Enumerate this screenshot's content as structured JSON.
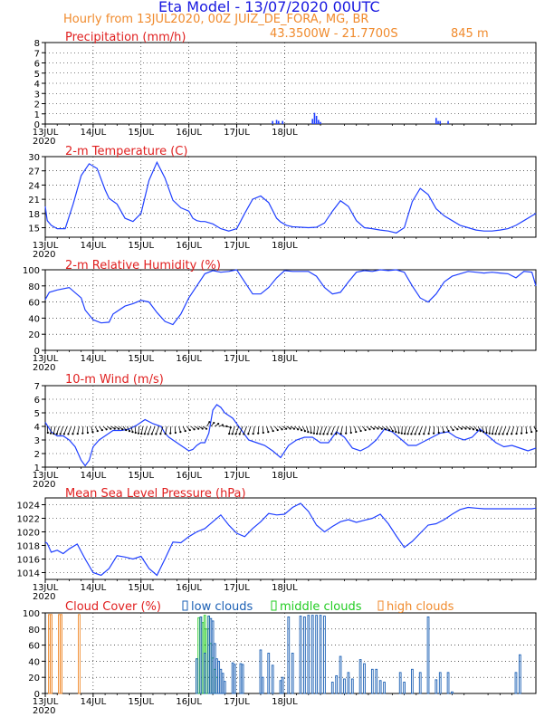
{
  "header": {
    "title": "Eta Model - 13/07/2020 00UTC",
    "subtitle": "Hourly from 13JUL2020, 00Z  JUIZ_DE_FORA, MG, BR",
    "coords": "43.3500W - 21.7700S",
    "elevation": "845  m"
  },
  "colors": {
    "title": "#1818e0",
    "label": "#e02020",
    "orange": "#f08a2c",
    "line": "#2040ff",
    "low": "#1a5fb4",
    "mid": "#22cc22",
    "high": "#f08a2c",
    "grid": "#000000",
    "arrow": "#000000"
  },
  "chart_data": [
    {
      "name": "precip",
      "type": "bar",
      "title": "Precipitation (mm/h)",
      "ylim": [
        0,
        8
      ],
      "yticks": [
        0,
        1,
        2,
        3,
        4,
        5,
        6,
        7,
        8
      ],
      "hours": [
        114,
        116,
        117,
        119,
        134,
        135,
        136,
        137,
        138,
        196,
        197,
        198,
        202
      ],
      "values": [
        0.3,
        0.4,
        0.3,
        0.3,
        0.5,
        1.1,
        0.8,
        0.4,
        0.2,
        0.6,
        0.3,
        0.3,
        0.3
      ]
    },
    {
      "name": "temp",
      "type": "line",
      "title": "2-m Temperature (C)",
      "ylim": [
        13,
        30
      ],
      "yticks": [
        15,
        18,
        21,
        24,
        27,
        30
      ],
      "hours": [
        0,
        1,
        3,
        6,
        10,
        14,
        18,
        22,
        26,
        30,
        32,
        36,
        40,
        44,
        48,
        52,
        56,
        60,
        64,
        68,
        72,
        74,
        76,
        78,
        80,
        84,
        88,
        92,
        96,
        100,
        104,
        108,
        112,
        116,
        118,
        121,
        124,
        128,
        132,
        136,
        140,
        144,
        148,
        152,
        156,
        160,
        164,
        168,
        172,
        176,
        180,
        184,
        188,
        192,
        196,
        200,
        204,
        208,
        212,
        216,
        220,
        224,
        228,
        232,
        236,
        240,
        244,
        246
      ],
      "values": [
        19.5,
        16.5,
        15.5,
        14.8,
        14.8,
        20,
        26,
        28.5,
        27.5,
        23,
        21.2,
        20,
        17,
        16.3,
        18,
        25,
        28.8,
        25.5,
        20.8,
        19.2,
        18.5,
        17,
        16.5,
        16.3,
        16.3,
        15.8,
        14.8,
        14.3,
        14.8,
        18,
        21,
        21.7,
        20.3,
        17,
        16.2,
        15.5,
        15.2,
        15.1,
        15,
        15.1,
        16,
        18.5,
        20.7,
        19.5,
        16.5,
        15,
        14.8,
        14.5,
        14.3,
        13.9,
        15,
        20.5,
        23.3,
        22,
        19,
        17.5,
        16.5,
        15.5,
        15,
        14.5,
        14.3,
        14.3,
        14.5,
        14.8,
        15.5,
        16.5,
        17.5,
        18
      ]
    },
    {
      "name": "rh",
      "type": "line",
      "title": "2-m Relative Humidity (%)",
      "ylim": [
        0,
        100
      ],
      "yticks": [
        0,
        20,
        40,
        60,
        80,
        100
      ],
      "hours": [
        0,
        2,
        6,
        12,
        18,
        20,
        24,
        28,
        32,
        34,
        40,
        44,
        48,
        52,
        56,
        60,
        64,
        68,
        72,
        76,
        80,
        84,
        88,
        92,
        96,
        100,
        104,
        108,
        112,
        116,
        120,
        124,
        128,
        132,
        136,
        140,
        144,
        148,
        152,
        156,
        160,
        164,
        168,
        172,
        176,
        180,
        184,
        188,
        192,
        196,
        200,
        204,
        208,
        212,
        216,
        220,
        224,
        228,
        232,
        236,
        240,
        244,
        246
      ],
      "values": [
        63,
        72,
        75,
        78,
        65,
        50,
        38,
        34,
        35,
        45,
        55,
        58,
        62,
        60,
        47,
        36,
        32,
        45,
        65,
        80,
        95,
        99,
        97,
        98,
        100,
        85,
        70,
        70,
        78,
        90,
        99,
        98,
        98,
        98,
        92,
        78,
        70,
        72,
        85,
        97,
        99,
        98,
        100,
        99,
        100,
        97,
        80,
        65,
        60,
        70,
        85,
        92,
        95,
        98,
        97,
        96,
        97,
        96,
        95,
        90,
        98,
        97,
        80
      ]
    },
    {
      "name": "wind",
      "type": "line",
      "title": "10-m Wind (m/s)",
      "ylim": [
        1,
        7
      ],
      "yticks": [
        1,
        2,
        3,
        4,
        5,
        6,
        7
      ],
      "hours": [
        0,
        3,
        6,
        9,
        12,
        15,
        18,
        20,
        22,
        24,
        27,
        30,
        34,
        38,
        42,
        46,
        50,
        54,
        58,
        60,
        62,
        64,
        66,
        68,
        70,
        72,
        74,
        76,
        78,
        80,
        82,
        84,
        86,
        88,
        90,
        94,
        98,
        102,
        106,
        110,
        114,
        118,
        122,
        126,
        130,
        134,
        138,
        142,
        146,
        150,
        154,
        158,
        162,
        166,
        170,
        174,
        178,
        182,
        186,
        190,
        194,
        198,
        202,
        206,
        210,
        214,
        218,
        222,
        226,
        230,
        234,
        238,
        242,
        246
      ],
      "values": [
        4.3,
        3.6,
        3.3,
        3.3,
        3,
        2.5,
        1.5,
        1.1,
        1.5,
        2.5,
        3,
        3.3,
        3.7,
        3.7,
        3.8,
        4.1,
        4.5,
        4.2,
        4,
        3.5,
        3.2,
        3,
        2.8,
        2.6,
        2.4,
        2.2,
        2.3,
        2.6,
        2.8,
        2.8,
        3.5,
        5.2,
        5.6,
        5.4,
        5,
        4.6,
        3.8,
        3,
        2.8,
        2.6,
        2.2,
        1.7,
        2.6,
        3,
        3.2,
        3.2,
        2.8,
        2.8,
        3.6,
        3.2,
        2.4,
        2.2,
        2.5,
        3,
        3.8,
        3.6,
        3.1,
        2.6,
        2.6,
        2.9,
        3.2,
        3.5,
        3.6,
        3.2,
        3,
        3.2,
        3.8,
        3.3,
        2.8,
        2.5,
        2.6,
        2.4,
        2.2,
        2.4
      ]
    },
    {
      "name": "pressure",
      "type": "line",
      "title": "Mean Sea Level Pressure (hPa)",
      "ylim": [
        1013,
        1025
      ],
      "yticks": [
        1014,
        1016,
        1018,
        1020,
        1022,
        1024
      ],
      "hours": [
        0,
        1,
        3,
        6,
        9,
        12,
        16,
        20,
        24,
        28,
        32,
        36,
        40,
        44,
        48,
        52,
        56,
        60,
        64,
        68,
        72,
        76,
        80,
        84,
        88,
        92,
        96,
        100,
        104,
        108,
        112,
        116,
        120,
        124,
        128,
        132,
        136,
        140,
        144,
        148,
        152,
        156,
        160,
        164,
        168,
        172,
        176,
        180,
        184,
        188,
        192,
        196,
        200,
        204,
        208,
        212,
        216,
        220,
        224,
        228,
        232,
        236,
        240,
        244,
        246
      ],
      "values": [
        1018.5,
        1018.3,
        1017,
        1017.3,
        1016.8,
        1017.5,
        1018.2,
        1016,
        1014,
        1013.6,
        1014.6,
        1016.5,
        1016.3,
        1016,
        1016.4,
        1014.6,
        1013.6,
        1016,
        1018.5,
        1018.4,
        1019.3,
        1020,
        1020.5,
        1021.5,
        1022.5,
        1021,
        1019.8,
        1019.3,
        1020.5,
        1021.5,
        1022.7,
        1022.5,
        1022.6,
        1023.6,
        1024.2,
        1023,
        1021,
        1020,
        1020.8,
        1021.5,
        1021.8,
        1021.4,
        1021.7,
        1022,
        1022.6,
        1021.2,
        1019.4,
        1017.7,
        1018.6,
        1019.8,
        1021,
        1021.2,
        1021.8,
        1022.6,
        1023.3,
        1023.6,
        1023.5,
        1023.4,
        1023.4,
        1023.4,
        1023.4,
        1023.4,
        1023.4,
        1023.4,
        1023.5
      ]
    },
    {
      "name": "cloud",
      "type": "bar",
      "title": "Cloud Cover (%)",
      "legend": [
        "low clouds",
        "middle clouds",
        "high clouds"
      ],
      "ylim": [
        0,
        100
      ],
      "yticks": [
        0,
        20,
        40,
        60,
        80,
        100
      ],
      "series": [
        {
          "name": "high clouds",
          "hours": [
            2,
            3,
            7,
            8,
            17
          ],
          "values": [
            98,
            98,
            98,
            98,
            98
          ]
        },
        {
          "name": "middle clouds",
          "hours": [
            76,
            77,
            78,
            79,
            80,
            81,
            82,
            83,
            84,
            85,
            86
          ],
          "values": [
            43,
            94,
            95,
            88,
            97,
            80,
            96,
            62,
            44,
            30,
            20
          ]
        },
        {
          "name": "low clouds",
          "hours": [
            76,
            78,
            80,
            82,
            83,
            84,
            85,
            86,
            87,
            88,
            89,
            90,
            94,
            95,
            98,
            99,
            108,
            109,
            112,
            114,
            118,
            119,
            122,
            124,
            128,
            130,
            132,
            134,
            136,
            138,
            140,
            144,
            146,
            148,
            150,
            152,
            154,
            158,
            160,
            164,
            166,
            168,
            170,
            178,
            180,
            184,
            188,
            192,
            196,
            198,
            202,
            204,
            236,
            238
          ],
          "values": [
            43,
            95,
            50,
            96,
            93,
            90,
            62,
            43,
            40,
            30,
            25,
            15,
            38,
            36,
            37,
            36,
            54,
            20,
            50,
            35,
            16,
            20,
            95,
            50,
            96,
            95,
            97,
            97,
            97,
            97,
            96,
            14,
            22,
            46,
            18,
            26,
            18,
            42,
            37,
            30,
            30,
            16,
            14,
            26,
            14,
            30,
            26,
            95,
            17,
            26,
            26,
            2,
            26,
            48
          ]
        }
      ]
    }
  ],
  "x_axis": {
    "tick_labels": [
      "13JUL",
      "14JUL",
      "15JUL",
      "16JUL",
      "17JUL",
      "18JUL"
    ],
    "tick_hours": [
      0,
      24,
      48,
      72,
      96,
      120
    ],
    "year": "2020"
  }
}
